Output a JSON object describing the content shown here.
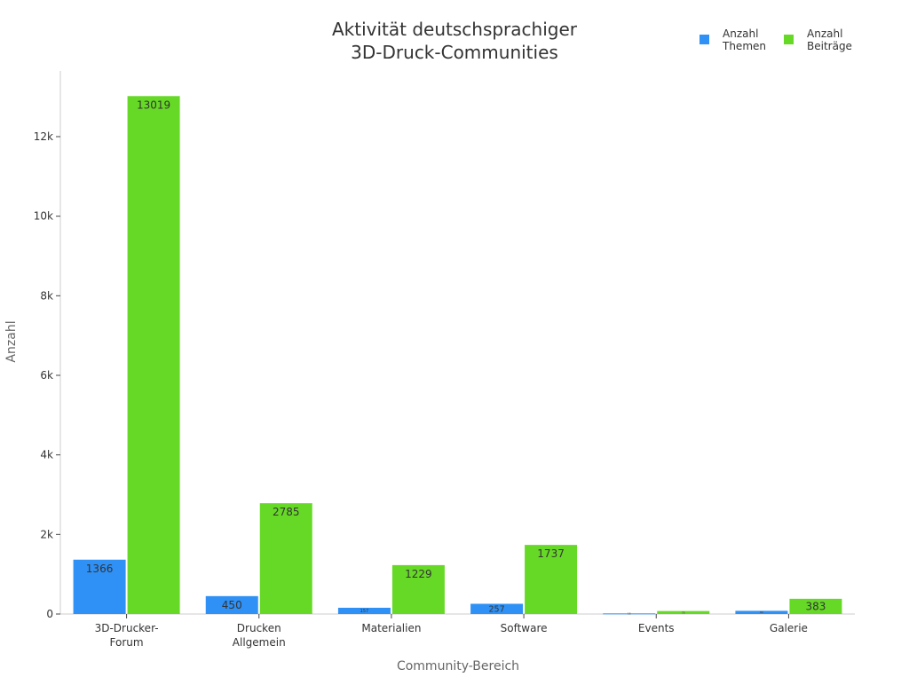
{
  "chart_data": {
    "type": "bar",
    "title": [
      "Aktivität deutschsprachiger",
      "3D-Druck-Communities"
    ],
    "xlabel": "Community-Bereich",
    "ylabel": "Anzahl",
    "categories": [
      [
        "3D-Drucker-",
        "Forum"
      ],
      [
        "Drucken",
        "Allgemein"
      ],
      [
        "Materialien"
      ],
      [
        "Software"
      ],
      [
        "Events"
      ],
      [
        "Galerie"
      ]
    ],
    "yticks": [
      {
        "v": 0,
        "label": "0"
      },
      {
        "v": 2000,
        "label": "2k"
      },
      {
        "v": 4000,
        "label": "4k"
      },
      {
        "v": 6000,
        "label": "6k"
      },
      {
        "v": 8000,
        "label": "8k"
      },
      {
        "v": 10000,
        "label": "10k"
      },
      {
        "v": 12000,
        "label": "12k"
      }
    ],
    "ylim": [
      0,
      13650
    ],
    "legend_position": "top-right",
    "grid": false,
    "series": [
      {
        "name": [
          "Anzahl",
          "Themen"
        ],
        "color": "#2f91f5",
        "values": [
          1366,
          450,
          157,
          257,
          15,
          80
        ]
      },
      {
        "name": [
          "Anzahl",
          "Beiträge"
        ],
        "color": "#66d926",
        "values": [
          13019,
          2785,
          1229,
          1737,
          75,
          383
        ]
      }
    ]
  }
}
